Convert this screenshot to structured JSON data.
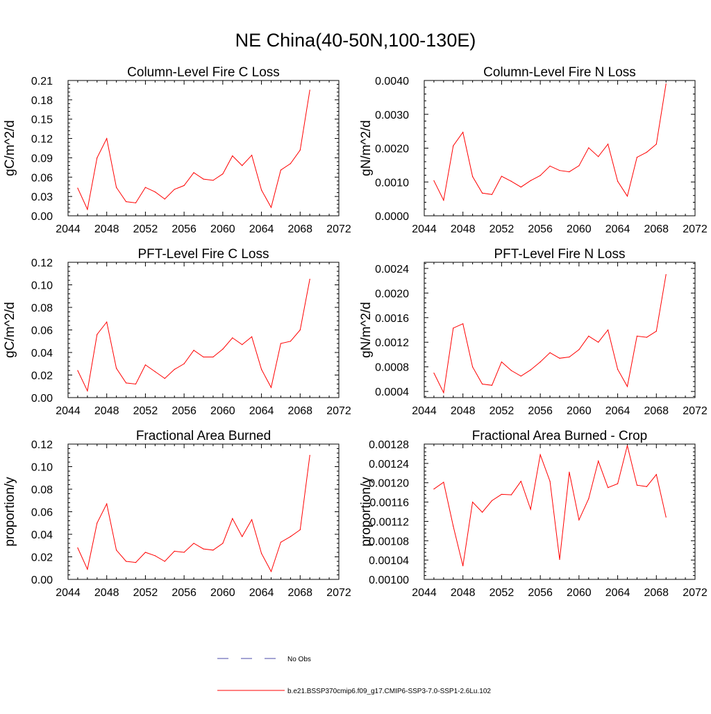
{
  "title": "NE China(40-50N,100-130E)",
  "colors": {
    "series": "#ff0000",
    "obs": "#4a4aa8",
    "axis": "#000000"
  },
  "legend": {
    "obs_label": "No Obs",
    "series_label": "b.e21.BSSP370cmip6.f09_g17.CMIP6-SSP3-7.0-SSP1-2.6Lu.102"
  },
  "chart_data": [
    {
      "type": "line",
      "title": "Column-Level Fire C Loss",
      "ylabel": "gC/m^2/d",
      "xlim": [
        2044,
        2072
      ],
      "ylim": [
        0,
        0.21
      ],
      "xticks": [
        "2044",
        "2048",
        "2052",
        "2056",
        "2060",
        "2064",
        "2068",
        "2072"
      ],
      "yticks": [
        "0.00",
        "0.03",
        "0.06",
        "0.09",
        "0.12",
        "0.15",
        "0.18",
        "0.21"
      ],
      "x": [
        2045,
        2046,
        2047,
        2048,
        2049,
        2050,
        2051,
        2052,
        2053,
        2054,
        2055,
        2056,
        2057,
        2058,
        2059,
        2060,
        2061,
        2062,
        2063,
        2064,
        2065,
        2066,
        2067,
        2068,
        2069
      ],
      "values": [
        0.043,
        0.01,
        0.09,
        0.12,
        0.044,
        0.022,
        0.02,
        0.044,
        0.037,
        0.026,
        0.041,
        0.047,
        0.067,
        0.057,
        0.055,
        0.065,
        0.093,
        0.078,
        0.094,
        0.04,
        0.013,
        0.071,
        0.081,
        0.102,
        0.195
      ]
    },
    {
      "type": "line",
      "title": "Column-Level Fire N Loss",
      "ylabel": "gN/m^2/d",
      "xlim": [
        2044,
        2072
      ],
      "ylim": [
        0,
        0.004
      ],
      "xticks": [
        "2044",
        "2048",
        "2052",
        "2056",
        "2060",
        "2064",
        "2068",
        "2072"
      ],
      "yticks": [
        "0.0000",
        "0.0010",
        "0.0020",
        "0.0030",
        "0.0040"
      ],
      "x": [
        2045,
        2046,
        2047,
        2048,
        2049,
        2050,
        2051,
        2052,
        2053,
        2054,
        2055,
        2056,
        2057,
        2058,
        2059,
        2060,
        2061,
        2062,
        2063,
        2064,
        2065,
        2066,
        2067,
        2068,
        2069
      ],
      "values": [
        0.00104,
        0.00046,
        0.00207,
        0.00247,
        0.00116,
        0.00067,
        0.00063,
        0.00117,
        0.00102,
        0.00085,
        0.00104,
        0.00119,
        0.00147,
        0.00134,
        0.0013,
        0.00148,
        0.00201,
        0.00175,
        0.00212,
        0.00102,
        0.00058,
        0.00173,
        0.00188,
        0.00212,
        0.0039
      ]
    },
    {
      "type": "line",
      "title": "PFT-Level Fire C Loss",
      "ylabel": "gC/m^2/d",
      "xlim": [
        2044,
        2072
      ],
      "ylim": [
        0,
        0.12
      ],
      "xticks": [
        "2044",
        "2048",
        "2052",
        "2056",
        "2060",
        "2064",
        "2068",
        "2072"
      ],
      "yticks": [
        "0.00",
        "0.02",
        "0.04",
        "0.06",
        "0.08",
        "0.10",
        "0.12"
      ],
      "x": [
        2045,
        2046,
        2047,
        2048,
        2049,
        2050,
        2051,
        2052,
        2053,
        2054,
        2055,
        2056,
        2057,
        2058,
        2059,
        2060,
        2061,
        2062,
        2063,
        2064,
        2065,
        2066,
        2067,
        2068,
        2069
      ],
      "values": [
        0.024,
        0.006,
        0.056,
        0.067,
        0.026,
        0.013,
        0.012,
        0.029,
        0.023,
        0.017,
        0.025,
        0.03,
        0.042,
        0.036,
        0.036,
        0.043,
        0.053,
        0.047,
        0.054,
        0.025,
        0.009,
        0.048,
        0.05,
        0.06,
        0.105
      ]
    },
    {
      "type": "line",
      "title": "PFT-Level Fire N Loss",
      "ylabel": "gN/m^2/d",
      "xlim": [
        2044,
        2072
      ],
      "ylim": [
        0.0003,
        0.0025
      ],
      "xticks": [
        "2044",
        "2048",
        "2052",
        "2056",
        "2060",
        "2064",
        "2068",
        "2072"
      ],
      "yticks": [
        "0.0004",
        "0.0008",
        "0.0012",
        "0.0016",
        "0.0020",
        "0.0024"
      ],
      "x": [
        2045,
        2046,
        2047,
        2048,
        2049,
        2050,
        2051,
        2052,
        2053,
        2054,
        2055,
        2056,
        2057,
        2058,
        2059,
        2060,
        2061,
        2062,
        2063,
        2064,
        2065,
        2066,
        2067,
        2068,
        2069
      ],
      "values": [
        0.0007,
        0.00038,
        0.00143,
        0.0015,
        0.0008,
        0.00052,
        0.0005,
        0.00088,
        0.00074,
        0.00065,
        0.00075,
        0.00088,
        0.00103,
        0.00094,
        0.00096,
        0.00108,
        0.0013,
        0.0012,
        0.0014,
        0.00076,
        0.00048,
        0.0013,
        0.00128,
        0.00138,
        0.0023
      ]
    },
    {
      "type": "line",
      "title": "Fractional Area Burned",
      "ylabel": "proportion/y",
      "xlim": [
        2044,
        2072
      ],
      "ylim": [
        0,
        0.12
      ],
      "xticks": [
        "2044",
        "2048",
        "2052",
        "2056",
        "2060",
        "2064",
        "2068",
        "2072"
      ],
      "yticks": [
        "0.00",
        "0.02",
        "0.04",
        "0.06",
        "0.08",
        "0.10",
        "0.12"
      ],
      "x": [
        2045,
        2046,
        2047,
        2048,
        2049,
        2050,
        2051,
        2052,
        2053,
        2054,
        2055,
        2056,
        2057,
        2058,
        2059,
        2060,
        2061,
        2062,
        2063,
        2064,
        2065,
        2066,
        2067,
        2068,
        2069
      ],
      "values": [
        0.028,
        0.009,
        0.05,
        0.067,
        0.026,
        0.016,
        0.015,
        0.024,
        0.021,
        0.016,
        0.025,
        0.024,
        0.032,
        0.027,
        0.026,
        0.032,
        0.054,
        0.038,
        0.053,
        0.023,
        0.007,
        0.033,
        0.038,
        0.044,
        0.11
      ]
    },
    {
      "type": "line",
      "title": "Fractional Area Burned - Crop",
      "ylabel": "proportion/y",
      "xlim": [
        2044,
        2072
      ],
      "ylim": [
        0.001,
        0.00128
      ],
      "xticks": [
        "2044",
        "2048",
        "2052",
        "2056",
        "2060",
        "2064",
        "2068",
        "2072"
      ],
      "yticks": [
        "0.00100",
        "0.00104",
        "0.00108",
        "0.00112",
        "0.00116",
        "0.00120",
        "0.00124",
        "0.00128"
      ],
      "x": [
        2045,
        2046,
        2047,
        2048,
        2049,
        2050,
        2051,
        2052,
        2053,
        2054,
        2055,
        2056,
        2057,
        2058,
        2059,
        2060,
        2061,
        2062,
        2063,
        2064,
        2065,
        2066,
        2067,
        2068,
        2069
      ],
      "values": [
        0.001187,
        0.001201,
        0.00111,
        0.001028,
        0.00116,
        0.001139,
        0.001163,
        0.001176,
        0.001175,
        0.001203,
        0.001145,
        0.001258,
        0.001203,
        0.001041,
        0.001222,
        0.001123,
        0.001167,
        0.001245,
        0.00119,
        0.001198,
        0.001277,
        0.001195,
        0.001192,
        0.001217,
        0.001129
      ]
    }
  ]
}
